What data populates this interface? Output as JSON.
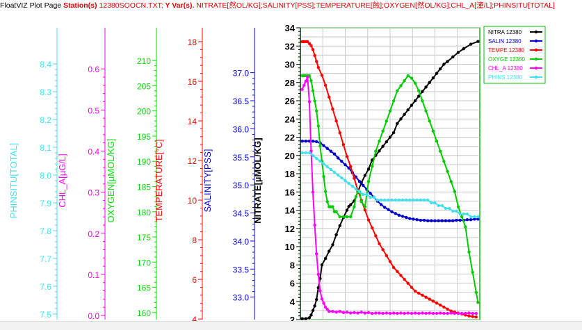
{
  "header": {
    "app_title": "FloatVIZ Plot Page",
    "station_label": "Station(s)",
    "station_value": "12380SOOCN.TXT;",
    "yvars_label": "Y Var(s).",
    "yvars_value": "NITRATE[然OL/KG];SALINITY[PSS];TEMPERATURE[蝕];OXYGEN[然OL/KG];CHL_A[潼/L];PHINSITU[TOTAL]"
  },
  "colors": {
    "header_red": "#e00000",
    "grid": "#c8c8c8",
    "plot_frame": "#00c000"
  },
  "chart_data": {
    "type": "line",
    "x": {
      "label": "",
      "range": [
        0,
        100
      ],
      "ticks": []
    },
    "y_axes": [
      {
        "key": "ph",
        "label": "PHINSITU[TOTAL]",
        "color": "#40e0f0",
        "range": [
          7.48,
          8.53
        ],
        "ticks": [
          "7.5",
          "7.6",
          "7.7",
          "7.8",
          "7.9",
          "8.0",
          "8.1",
          "8.2",
          "8.3",
          "8.4"
        ],
        "tick_values": [
          7.5,
          7.6,
          7.7,
          7.8,
          7.9,
          8.0,
          8.1,
          8.2,
          8.3,
          8.4
        ]
      },
      {
        "key": "chl",
        "label": "CHL_A[µG/L]",
        "color": "#ff00ff",
        "range": [
          -0.01,
          0.7
        ],
        "ticks": [
          "0.0",
          "0.1",
          "0.2",
          "0.3",
          "0.4",
          "0.5",
          "0.6"
        ],
        "tick_values": [
          0,
          0.1,
          0.2,
          0.3,
          0.4,
          0.5,
          0.6
        ]
      },
      {
        "key": "oxy",
        "label": "OXYGEN[µMOL/KG]",
        "color": "#00dd00",
        "range": [
          158.6,
          216.5
        ],
        "ticks": [
          "160",
          "165",
          "170",
          "175",
          "180",
          "185",
          "190",
          "195",
          "200",
          "205",
          "210"
        ],
        "tick_values": [
          160,
          165,
          170,
          175,
          180,
          185,
          190,
          195,
          200,
          205,
          210
        ]
      },
      {
        "key": "temp",
        "label": "TEMPERATURE[°C]",
        "color": "#ff0000",
        "range": [
          3.97,
          18.7
        ],
        "ticks": [
          "4",
          "6",
          "8",
          "10",
          "12",
          "14",
          "16",
          "18"
        ],
        "tick_values": [
          4,
          6,
          8,
          10,
          12,
          14,
          16,
          18
        ]
      },
      {
        "key": "sal",
        "label": "SALINITY[PSS]",
        "color": "#0000dd",
        "range": [
          32.6,
          37.8
        ],
        "ticks": [
          "33.0",
          "33.5",
          "34.0",
          "34.5",
          "35.0",
          "35.5",
          "36.0",
          "36.5",
          "37.0"
        ],
        "tick_values": [
          33.0,
          33.5,
          34.0,
          34.5,
          35.0,
          35.5,
          36.0,
          36.5,
          37.0
        ]
      },
      {
        "key": "nit",
        "label": "NITRATE[µMOL/KG]",
        "color": "#000000",
        "range": [
          2,
          34
        ],
        "ticks": [
          "2",
          "4",
          "6",
          "8",
          "10",
          "12",
          "14",
          "16",
          "18",
          "20",
          "22",
          "24",
          "26",
          "28",
          "30",
          "32",
          "34"
        ],
        "tick_values": [
          2,
          4,
          6,
          8,
          10,
          12,
          14,
          16,
          18,
          20,
          22,
          24,
          26,
          28,
          30,
          32,
          34
        ]
      }
    ],
    "series": [
      {
        "name": "NITRA 12380",
        "axis": "nit",
        "color": "#000000",
        "marker": true,
        "x": [
          1,
          3,
          5,
          6,
          7,
          8,
          9,
          10,
          11,
          12,
          14,
          16,
          18,
          20,
          22,
          24,
          26,
          27,
          28,
          30,
          32,
          34,
          36,
          38,
          40,
          42,
          44,
          46,
          48,
          50,
          52,
          54,
          56,
          58,
          60,
          62,
          64,
          66,
          68,
          70,
          72,
          74,
          76,
          78,
          80,
          82,
          85,
          88,
          91,
          95,
          99
        ],
        "y": [
          2.1,
          2.1,
          2.2,
          2.5,
          3,
          3.5,
          4.2,
          5.5,
          6.5,
          8,
          8.7,
          9.5,
          10.2,
          11.3,
          12.3,
          13.2,
          14,
          14.4,
          14.6,
          15,
          16,
          17,
          17.8,
          18.5,
          19.5,
          20,
          20.5,
          21,
          21.5,
          22,
          22.5,
          23.5,
          24,
          24.5,
          25,
          25.5,
          26,
          26.5,
          27,
          27.5,
          28,
          28.5,
          29,
          29.5,
          30,
          30.3,
          30.8,
          31.3,
          31.7,
          32.2,
          32.5
        ]
      },
      {
        "name": "SALIN 12380",
        "axis": "sal",
        "color": "#0000cc",
        "marker": true,
        "x": [
          1,
          3,
          5,
          7,
          9,
          11,
          13,
          15,
          17,
          19,
          21,
          23,
          25,
          27,
          29,
          31,
          33,
          35,
          37,
          39,
          41,
          43,
          45,
          47,
          49,
          51,
          53,
          55,
          57,
          59,
          61,
          63,
          65,
          67,
          69,
          71,
          73,
          75,
          77,
          79,
          81,
          83,
          85,
          87,
          89,
          91,
          93,
          95,
          97,
          99
        ],
        "y": [
          35.78,
          35.78,
          35.78,
          35.78,
          35.77,
          35.75,
          35.7,
          35.65,
          35.6,
          35.55,
          35.48,
          35.42,
          35.36,
          35.3,
          35.22,
          35.14,
          35.06,
          34.99,
          34.92,
          34.85,
          34.78,
          34.71,
          34.65,
          34.6,
          34.56,
          34.52,
          34.49,
          34.46,
          34.44,
          34.42,
          34.4,
          34.39,
          34.38,
          34.37,
          34.37,
          34.36,
          34.36,
          34.36,
          34.36,
          34.36,
          34.36,
          34.36,
          34.36,
          34.37,
          34.37,
          34.37,
          34.38,
          34.38,
          34.39,
          34.39
        ]
      },
      {
        "name": "TEMPE 12380",
        "axis": "temp",
        "color": "#ff0000",
        "marker": true,
        "x": [
          1,
          2,
          3,
          4,
          5,
          6,
          7,
          8,
          9,
          10,
          12,
          14,
          16,
          18,
          20,
          22,
          24,
          26,
          28,
          30,
          32,
          34,
          36,
          38,
          40,
          42,
          44,
          46,
          48,
          50,
          52,
          54,
          56,
          58,
          60,
          62,
          64,
          66,
          68,
          70,
          72,
          74,
          76,
          78,
          80,
          82,
          84,
          86,
          88,
          90,
          92,
          94,
          96,
          98
        ],
        "y": [
          18.0,
          18.0,
          18.0,
          18.0,
          17.9,
          17.8,
          17.6,
          17.3,
          17.0,
          16.7,
          16.3,
          15.8,
          15.2,
          14.6,
          14.0,
          13.4,
          12.8,
          12.2,
          11.7,
          11.1,
          10.5,
          10.0,
          9.5,
          9.0,
          8.6,
          8.2,
          7.8,
          7.5,
          7.2,
          6.9,
          6.6,
          6.4,
          6.2,
          6.0,
          5.8,
          5.6,
          5.4,
          5.3,
          5.2,
          5.1,
          5.0,
          4.9,
          4.8,
          4.7,
          4.6,
          4.5,
          4.4,
          4.35,
          4.3,
          4.25,
          4.2,
          4.15,
          4.12,
          4.1
        ]
      },
      {
        "name": "OXYGE 12380",
        "axis": "oxy",
        "color": "#00cc00",
        "marker": true,
        "x": [
          1,
          2,
          3,
          4,
          5,
          6,
          7,
          8,
          9,
          10,
          11,
          12,
          13,
          14,
          15,
          16,
          17,
          18,
          19,
          20,
          22,
          24,
          26,
          28,
          30,
          31,
          32,
          33,
          34,
          36,
          38,
          40,
          42,
          44,
          46,
          48,
          50,
          52,
          54,
          56,
          58,
          60,
          62,
          64,
          66,
          68,
          70,
          72,
          74,
          76,
          78,
          80,
          82,
          84,
          86,
          88,
          90,
          92,
          94,
          96,
          98,
          99
        ],
        "y": [
          207,
          207,
          207,
          207,
          207,
          206,
          204,
          202,
          200,
          197,
          193,
          190,
          187,
          184,
          182,
          181,
          181,
          181,
          180,
          180,
          179,
          179,
          179,
          179,
          181,
          183,
          184,
          184,
          182,
          181,
          186,
          189,
          192,
          194,
          196,
          198,
          200,
          202,
          204,
          205,
          206,
          207,
          206.5,
          205.5,
          204,
          202,
          200,
          198,
          196,
          194,
          192,
          190,
          188,
          186,
          184,
          181,
          179,
          177,
          172,
          168,
          164,
          162
        ]
      },
      {
        "name": "CHL_A 12380",
        "axis": "chl",
        "color": "#ff00ff",
        "marker": true,
        "x": [
          1,
          2,
          3,
          4,
          5,
          6,
          7,
          8,
          9,
          10,
          11,
          12,
          13,
          14,
          15,
          16,
          18,
          20,
          22,
          24,
          26,
          28,
          30,
          32,
          34,
          36,
          38,
          40,
          42,
          44,
          46,
          48,
          50,
          52,
          54,
          56,
          58,
          60,
          62,
          64,
          66,
          68,
          70,
          72,
          74,
          76,
          78,
          80,
          82,
          84,
          86,
          88,
          90,
          92,
          94,
          96,
          98
        ],
        "y": [
          0.55,
          0.56,
          0.57,
          0.58,
          0.52,
          0.4,
          0.3,
          0.22,
          0.15,
          0.1,
          0.06,
          0.04,
          0.03,
          0.02,
          0.015,
          0.01,
          0.01,
          0.008,
          0.01,
          0.007,
          0.008,
          0.006,
          0.007,
          0.006,
          0.008,
          0.006,
          0.007,
          0.005,
          0.006,
          0.006,
          0.005,
          0.006,
          0.005,
          0.006,
          0.005,
          0.006,
          0.005,
          0.006,
          0.005,
          0.006,
          0.005,
          0.006,
          0.005,
          0.006,
          0.005,
          0.005,
          0.006,
          0.005,
          0.005,
          0.006,
          0.005,
          0.005,
          0.005,
          0.005,
          0.006,
          0.005,
          0.005
        ]
      },
      {
        "name": "PHINS 12380",
        "axis": "ph",
        "color": "#40e0f0",
        "marker": true,
        "x": [
          1,
          3,
          5,
          7,
          9,
          11,
          13,
          15,
          17,
          19,
          21,
          23,
          25,
          27,
          29,
          31,
          33,
          35,
          37,
          39,
          41,
          43,
          45,
          47,
          49,
          51,
          53,
          55,
          57,
          59,
          61,
          63,
          65,
          67,
          69,
          71,
          73,
          75,
          77,
          79,
          81,
          83,
          85,
          87,
          89,
          91,
          93,
          95,
          97,
          99
        ],
        "y": [
          8.08,
          8.08,
          8.08,
          8.07,
          8.06,
          8.05,
          8.04,
          8.03,
          8.02,
          8.01,
          8.0,
          7.99,
          7.98,
          7.97,
          7.96,
          7.95,
          7.94,
          7.93,
          7.93,
          7.92,
          7.92,
          7.91,
          7.91,
          7.91,
          7.91,
          7.91,
          7.91,
          7.91,
          7.91,
          7.91,
          7.91,
          7.91,
          7.91,
          7.91,
          7.91,
          7.91,
          7.9,
          7.9,
          7.89,
          7.89,
          7.88,
          7.88,
          7.87,
          7.87,
          7.86,
          7.86,
          7.86,
          7.85,
          7.85,
          7.85
        ]
      }
    ],
    "legend": {
      "placement": "top-right"
    },
    "grid": true
  }
}
